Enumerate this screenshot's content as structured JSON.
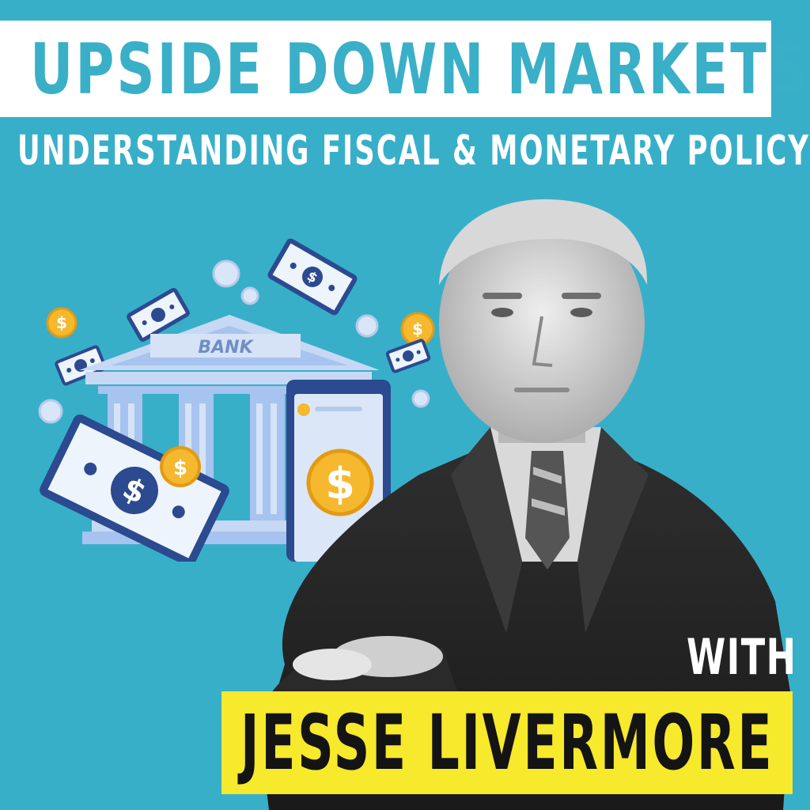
{
  "header": {
    "title": "UPSIDE DOWN MARKETS",
    "subtitle": "UNDERSTANDING FISCAL & MONETARY POLICY"
  },
  "illustration": {
    "bank_sign": "BANK",
    "currency_symbol": "$",
    "icons": [
      "bank-icon",
      "dollar-bill-icon",
      "dollar-coin-icon",
      "smartphone-payment-icon"
    ]
  },
  "guest": {
    "with_label": "WITH",
    "name": "JESSE LIVERMORE"
  },
  "colors": {
    "background": "#38afc9",
    "title_bar": "#ffffff",
    "name_bar": "#f7e92c",
    "coin": "#f5b82e",
    "bill_border": "#2b4a8f",
    "bank": "#a7c3ef"
  }
}
